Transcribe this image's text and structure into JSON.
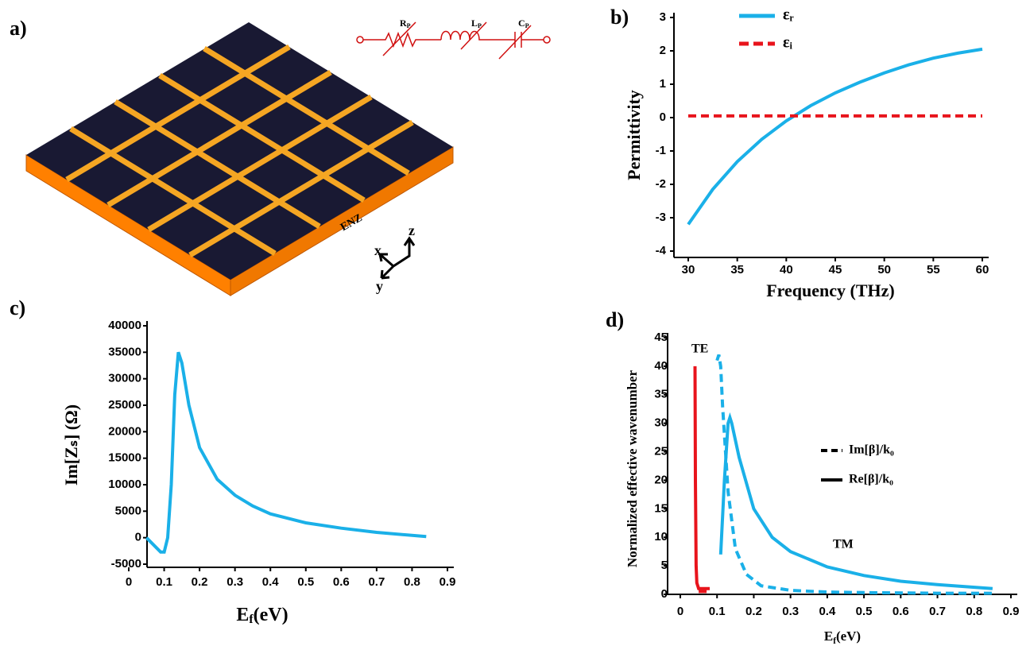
{
  "illustration": {
    "panel_label": "a)",
    "circuit": [
      {
        "main": "R",
        "sub": "P"
      },
      {
        "main": "L",
        "sub": "P"
      },
      {
        "main": "C",
        "sub": "P"
      }
    ],
    "slab_label": "ENZ",
    "axes": [
      "x",
      "y",
      "z"
    ]
  },
  "chart_data": [
    {
      "type": "line",
      "panel_label": "b)",
      "x_label": "Frequency (THz)",
      "y_label": "Permittivity",
      "x": [
        30,
        32.5,
        35,
        37.5,
        40,
        42.5,
        45,
        47.5,
        50,
        52.5,
        55,
        57.5,
        60
      ],
      "series": [
        {
          "name": "εᵣ",
          "color": "#1ab0e8",
          "dash": false,
          "values": [
            -3.2,
            -2.15,
            -1.32,
            -0.65,
            -0.1,
            0.36,
            0.74,
            1.06,
            1.34,
            1.58,
            1.78,
            1.93,
            2.05
          ]
        },
        {
          "name": "εᵢ",
          "color": "#e8141c",
          "dash": true,
          "values": [
            0.05,
            0.05,
            0.05,
            0.05,
            0.05,
            0.05,
            0.05,
            0.05,
            0.05,
            0.05,
            0.05,
            0.05,
            0.05
          ]
        }
      ],
      "xlim": [
        30,
        60
      ],
      "xticks": [
        30,
        35,
        40,
        45,
        50,
        55,
        60
      ],
      "ylim": [
        -4,
        3
      ],
      "yticks": [
        -4,
        -3,
        -2,
        -1,
        0,
        1,
        2,
        3
      ],
      "legend": "top-left"
    },
    {
      "type": "line",
      "panel_label": "c)",
      "x_label": {
        "main": "E",
        "sub": "f",
        "unit": "(eV)"
      },
      "y_label": "Im[Zₛ] (Ω)",
      "x": [
        0.05,
        0.09,
        0.1,
        0.11,
        0.12,
        0.13,
        0.14,
        0.15,
        0.17,
        0.2,
        0.25,
        0.3,
        0.35,
        0.4,
        0.5,
        0.6,
        0.7,
        0.84
      ],
      "series": [
        {
          "color": "#1ab0e8",
          "dash": false,
          "values": [
            0,
            -2700,
            -2700,
            0,
            10000,
            27000,
            35000,
            33000,
            25000,
            17000,
            11000,
            8000,
            6000,
            4500,
            2800,
            1800,
            1000,
            200
          ]
        }
      ],
      "xlim": [
        0,
        0.9
      ],
      "xticks": [
        0,
        0.1,
        0.2,
        0.3,
        0.4,
        0.5,
        0.6,
        0.7,
        0.8,
        0.9
      ],
      "ylim": [
        -5000,
        40000
      ],
      "yticks": [
        -5000,
        0,
        5000,
        10000,
        15000,
        20000,
        25000,
        30000,
        35000,
        40000
      ]
    },
    {
      "type": "line",
      "panel_label": "d)",
      "x_label": {
        "main": "E",
        "sub": "f",
        "unit": "(eV)"
      },
      "y_label": "Normalized effective wavenumber",
      "series": [
        {
          "color": "#e8141c",
          "dash": false,
          "x": [
            0.04,
            0.041,
            0.043,
            0.045,
            0.05,
            0.06,
            0.08
          ],
          "values": [
            40,
            20,
            5,
            2,
            1,
            1,
            1
          ]
        },
        {
          "color": "#e8141c",
          "dash": true,
          "x": [
            0.05,
            0.06,
            0.08
          ],
          "values": [
            0.5,
            0.5,
            0.5
          ]
        },
        {
          "color": "#1ab0e8",
          "dash": true,
          "x": [
            0.1,
            0.105,
            0.11,
            0.115,
            0.12,
            0.13,
            0.15,
            0.18,
            0.22,
            0.3,
            0.4,
            0.5,
            0.7,
            0.85
          ],
          "values": [
            41,
            42,
            40,
            33,
            28,
            18,
            8,
            3.5,
            1.5,
            0.7,
            0.4,
            0.3,
            0.2,
            0.2
          ]
        },
        {
          "color": "#1ab0e8",
          "dash": false,
          "x": [
            0.11,
            0.12,
            0.13,
            0.135,
            0.14,
            0.16,
            0.2,
            0.25,
            0.3,
            0.4,
            0.5,
            0.6,
            0.7,
            0.85
          ],
          "values": [
            7,
            20,
            30,
            31,
            30,
            24,
            15,
            10,
            7.5,
            4.8,
            3.3,
            2.3,
            1.7,
            1
          ]
        }
      ],
      "legend_entries": [
        {
          "label": "Im[β]/k₀",
          "dash": true
        },
        {
          "label": "Re[β]/k₀",
          "dash": false
        }
      ],
      "annotations": [
        "TE",
        "TM"
      ],
      "xlim": [
        0,
        0.9
      ],
      "xticks": [
        0,
        0.1,
        0.2,
        0.3,
        0.4,
        0.5,
        0.6,
        0.7,
        0.8,
        0.9
      ],
      "ylim": [
        0,
        45
      ],
      "yticks": [
        0,
        5,
        10,
        15,
        20,
        25,
        30,
        35,
        40,
        45
      ]
    }
  ]
}
